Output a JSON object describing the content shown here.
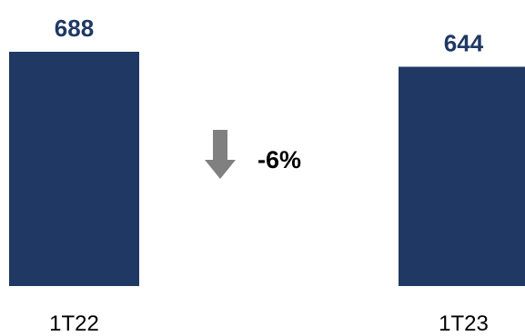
{
  "chart_data": {
    "type": "bar",
    "categories": [
      "1T22",
      "1T23"
    ],
    "values": [
      688,
      644
    ],
    "value_labels": [
      "688",
      "644"
    ],
    "bar_color": "#1f3864",
    "value_label_color": "#1f3864",
    "ylim": [
      0,
      688
    ],
    "grid": false,
    "legend": "none",
    "annotation": {
      "text": "-6%",
      "icon": "arrow-down-icon",
      "icon_color": "#808080"
    }
  }
}
